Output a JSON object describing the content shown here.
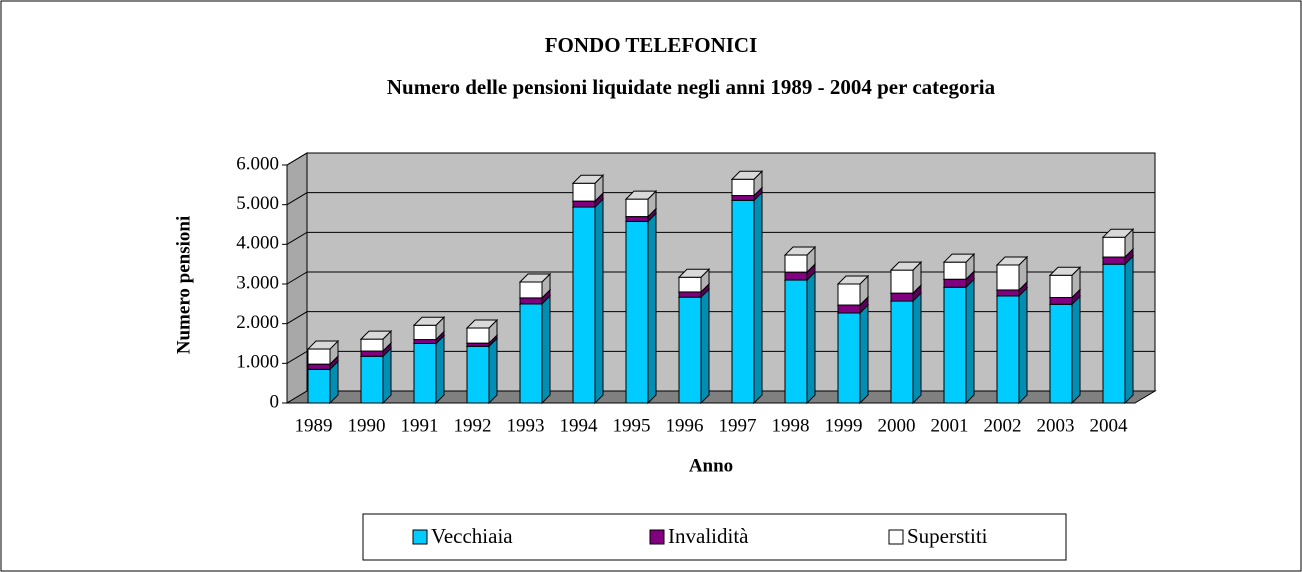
{
  "chart_data": {
    "type": "bar",
    "stacked": true,
    "title": "FONDO TELEFONICI",
    "subtitle": "Numero delle pensioni  liquidate negli anni 1989 - 2004 per categoria",
    "y_label": "Numero pensioni",
    "x_label": "Anno",
    "categories": [
      "1989",
      "1990",
      "1991",
      "1992",
      "1993",
      "1994",
      "1995",
      "1996",
      "1997",
      "1998",
      "1999",
      "2000",
      "2001",
      "2002",
      "2003",
      "2004"
    ],
    "series": [
      {
        "name": "Vecchiaia",
        "color": "#00ccff",
        "values": [
          850,
          1180,
          1500,
          1430,
          2500,
          4940,
          4580,
          2670,
          5110,
          3100,
          2270,
          2570,
          2920,
          2700,
          2490,
          3500
        ]
      },
      {
        "name": "Invalidità",
        "color": "#800080",
        "values": [
          130,
          130,
          100,
          80,
          150,
          150,
          120,
          130,
          120,
          200,
          200,
          200,
          200,
          150,
          170,
          180
        ]
      },
      {
        "name": "Superstiti",
        "color": "#ffffff",
        "values": [
          380,
          300,
          360,
          380,
          400,
          450,
          440,
          370,
          410,
          430,
          530,
          580,
          430,
          630,
          560,
          500
        ]
      }
    ],
    "ylim": [
      0,
      6000
    ],
    "yticks": [
      0,
      {
        "value": 1000,
        "label": "1.000"
      },
      {
        "value": 2000,
        "label": "2.000"
      },
      {
        "value": 3000,
        "label": "3.000"
      },
      {
        "value": 4000,
        "label": "4.000"
      },
      {
        "value": 5000,
        "label": "5.000"
      },
      {
        "value": 6000,
        "label": "6.000"
      }
    ],
    "grid": true,
    "legend": "bottom"
  }
}
